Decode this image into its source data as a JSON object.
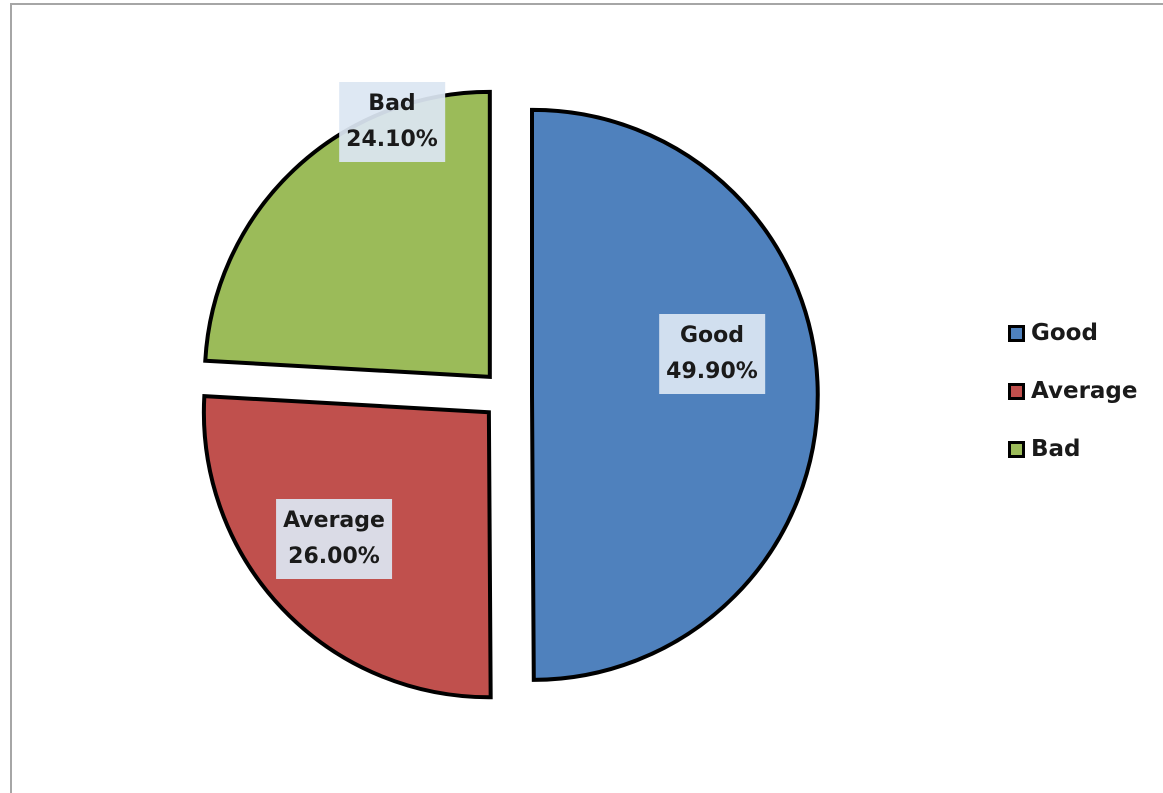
{
  "chart_data": {
    "type": "pie",
    "categories": [
      "Good",
      "Average",
      "Bad"
    ],
    "values": [
      49.9,
      26.0,
      24.1
    ],
    "value_labels": [
      "49.90%",
      "26.00%",
      "24.10%"
    ],
    "colors": [
      "#4f81bd",
      "#c0504d",
      "#9bbb59"
    ],
    "exploded": true,
    "data_labels": "category and percentage",
    "legend": "right",
    "title": ""
  }
}
